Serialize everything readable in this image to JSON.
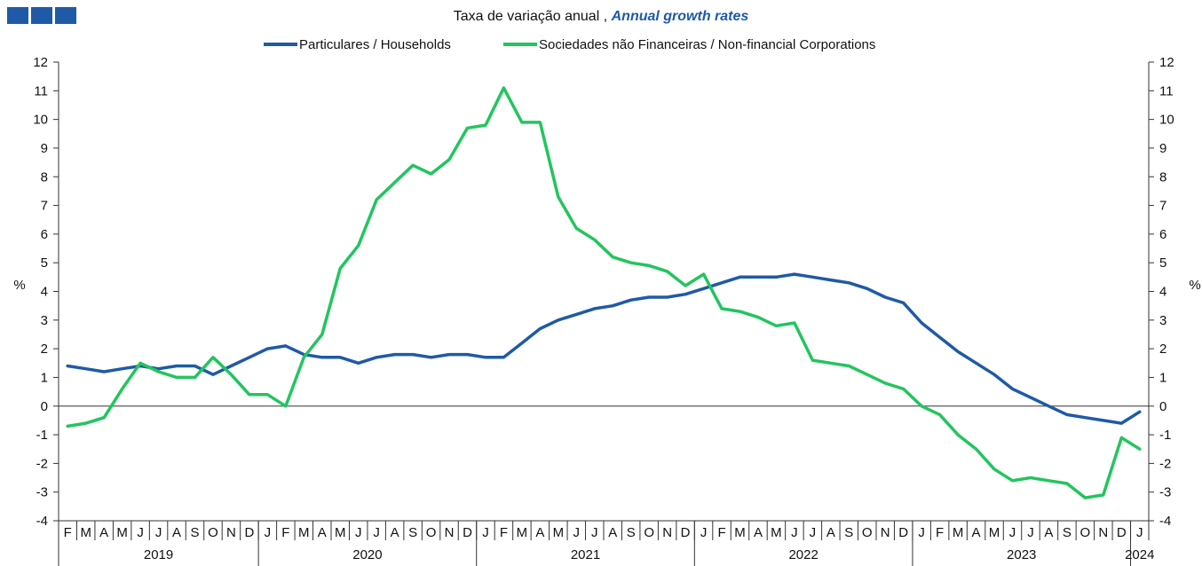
{
  "colors": {
    "households": "#1f5aa6",
    "nfc": "#22c55e",
    "axis": "#333333",
    "logo": "#1f5aa6"
  },
  "header": {
    "subtitle_pt": "Taxa de variação anual ,",
    "subtitle_en": "Annual growth rates"
  },
  "chart_data": {
    "type": "line",
    "title": "",
    "subtitle": "Taxa de variação anual , Annual growth rates",
    "ylabel_left": "%",
    "ylabel_right": "%",
    "ylim": [
      -4,
      12
    ],
    "yticks": [
      -4,
      -3,
      -2,
      -1,
      0,
      1,
      2,
      3,
      4,
      5,
      6,
      7,
      8,
      9,
      10,
      11,
      12
    ],
    "grid": false,
    "legend_position": "top",
    "month_labels": [
      "F",
      "M",
      "A",
      "M",
      "J",
      "J",
      "A",
      "S",
      "O",
      "N",
      "D",
      "J",
      "F",
      "M",
      "A",
      "M",
      "J",
      "J",
      "A",
      "S",
      "O",
      "N",
      "D",
      "J",
      "F",
      "M",
      "A",
      "M",
      "J",
      "J",
      "A",
      "S",
      "O",
      "N",
      "D",
      "J",
      "F",
      "M",
      "A",
      "M",
      "J",
      "J",
      "A",
      "S",
      "O",
      "N",
      "D",
      "J",
      "F",
      "M",
      "A",
      "M",
      "J",
      "J",
      "A",
      "S",
      "O",
      "N",
      "D",
      "J"
    ],
    "years": [
      {
        "label": "2019",
        "start": 0,
        "end": 10
      },
      {
        "label": "2020",
        "start": 11,
        "end": 22
      },
      {
        "label": "2021",
        "start": 23,
        "end": 34
      },
      {
        "label": "2022",
        "start": 35,
        "end": 46
      },
      {
        "label": "2023",
        "start": 47,
        "end": 58
      },
      {
        "label": "2024",
        "start": 59,
        "end": 59
      }
    ],
    "series": [
      {
        "name": "Particulares / Households",
        "values": [
          1.4,
          1.3,
          1.2,
          1.3,
          1.4,
          1.3,
          1.4,
          1.4,
          1.1,
          1.4,
          1.7,
          2.0,
          2.1,
          1.8,
          1.7,
          1.7,
          1.5,
          1.7,
          1.8,
          1.8,
          1.7,
          1.8,
          1.8,
          1.7,
          1.7,
          2.2,
          2.7,
          3.0,
          3.2,
          3.4,
          3.5,
          3.7,
          3.8,
          3.8,
          3.9,
          4.1,
          4.3,
          4.5,
          4.5,
          4.5,
          4.6,
          4.5,
          4.4,
          4.3,
          4.1,
          3.8,
          3.6,
          2.9,
          2.4,
          1.9,
          1.5,
          1.1,
          0.6,
          0.3,
          0.0,
          -0.3,
          -0.4,
          -0.5,
          -0.6,
          -0.2
        ]
      },
      {
        "name": "Sociedades não Financeiras / Non-financial Corporations",
        "values": [
          -0.7,
          -0.6,
          -0.4,
          0.6,
          1.5,
          1.2,
          1.0,
          1.0,
          1.7,
          1.1,
          0.4,
          0.4,
          0.0,
          1.7,
          2.5,
          4.8,
          5.6,
          7.2,
          7.8,
          8.4,
          8.1,
          8.6,
          9.7,
          9.8,
          11.1,
          9.9,
          9.9,
          7.3,
          6.2,
          5.8,
          5.2,
          5.0,
          4.9,
          4.7,
          4.2,
          4.6,
          3.4,
          3.3,
          3.1,
          2.8,
          2.9,
          1.6,
          1.5,
          1.4,
          1.1,
          0.8,
          0.6,
          0.0,
          -0.3,
          -1.0,
          -1.5,
          -2.2,
          -2.6,
          -2.5,
          -2.6,
          -2.7,
          -3.2,
          -3.1,
          -1.1,
          -1.5
        ]
      }
    ]
  }
}
